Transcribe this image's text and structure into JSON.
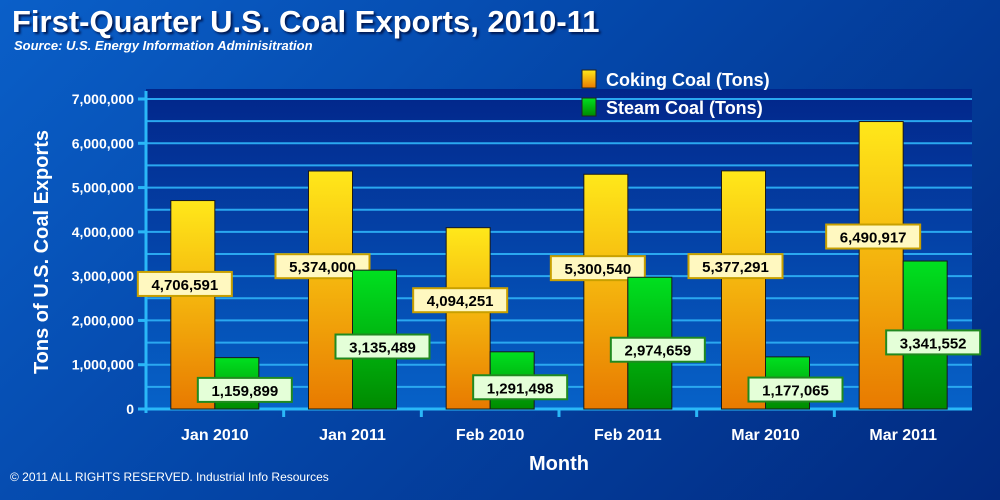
{
  "title": "First-Quarter U.S. Coal Exports, 2010-11",
  "subtitle": "Source:  U.S. Energy Information Adminisitration",
  "footer": "© 2011 ALL RIGHTS RESERVED. Industrial Info Resources",
  "chart_data": {
    "type": "bar",
    "title": "First-Quarter U.S. Coal Exports, 2010-11",
    "xlabel": "Month",
    "ylabel": "Tons of U.S. Coal Exports",
    "ylim": [
      0,
      7000000
    ],
    "yticks": [
      0,
      1000000,
      2000000,
      3000000,
      4000000,
      5000000,
      6000000,
      7000000
    ],
    "ytick_labels": [
      "0",
      "1,000,000",
      "2,000,000",
      "3,000,000",
      "4,000,000",
      "5,000,000",
      "6,000,000",
      "7,000,000"
    ],
    "grid": true,
    "legend_position": "top-right",
    "categories": [
      "Jan 2010",
      "Jan 2011",
      "Feb 2010",
      "Feb 2011",
      "Mar 2010",
      "Mar 2011"
    ],
    "series": [
      {
        "name": "Coking Coal (Tons)",
        "color": "#f5a800",
        "values": [
          4706591,
          5374000,
          4094251,
          5300540,
          5377291,
          6490917
        ],
        "labels": [
          "4,706,591",
          "5,374,000",
          "4,094,251",
          "5,300,540",
          "5,377,291",
          "6,490,917"
        ]
      },
      {
        "name": "Steam Coal (Tons)",
        "color": "#00b800",
        "values": [
          1159899,
          3135489,
          1291498,
          2974659,
          1177065,
          3341552
        ],
        "labels": [
          "1,159,899",
          "3,135,489",
          "1,291,498",
          "2,974,659",
          "1,177,065",
          "3,341,552"
        ]
      }
    ]
  }
}
